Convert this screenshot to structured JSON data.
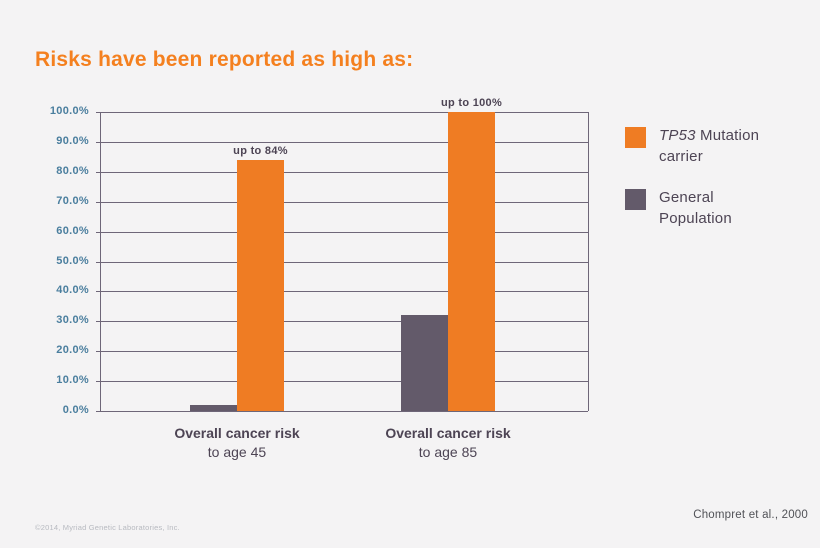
{
  "title": "Risks have been reported as high as:",
  "chart_data": {
    "type": "bar",
    "title": "Risks have been reported as high as:",
    "categories": [
      {
        "title": "Overall cancer risk",
        "subtitle": "to age 45"
      },
      {
        "title": "Overall cancer risk",
        "subtitle": "to age 85"
      }
    ],
    "series": [
      {
        "name": "TP53 Mutation carrier",
        "color": "#ef7c23",
        "values": [
          84,
          100
        ]
      },
      {
        "name": "General Population",
        "color": "#635a6a",
        "values": [
          2,
          32
        ]
      }
    ],
    "annotations": [
      "up to 84%",
      "up to 100%"
    ],
    "y_ticks": [
      "100.0%",
      "90.0%",
      "80.0%",
      "70.0%",
      "60.0%",
      "50.0%",
      "40.0%",
      "30.0%",
      "20.0%",
      "10.0%",
      "0.0%"
    ],
    "ylim": [
      0,
      100
    ],
    "grid": true,
    "legend_position": "right"
  },
  "legend": {
    "items": [
      {
        "italic": "TP53",
        "label": " Mutation carrier",
        "color": "#ef7c23"
      },
      {
        "italic": "",
        "label": "General Population",
        "color": "#635a6a"
      }
    ]
  },
  "footer": {
    "copyright": "©2014, Myriad Genetic Laboratories, Inc.",
    "citation": "Chompret et al., 2000"
  },
  "colors": {
    "background": "#f4f3f4",
    "title": "#f4801f",
    "axis_label": "#4a7e9e",
    "text_dark": "#4d4454",
    "gridline": "#6e6678",
    "orange": "#ef7c23",
    "gray_purple": "#635a6a"
  }
}
